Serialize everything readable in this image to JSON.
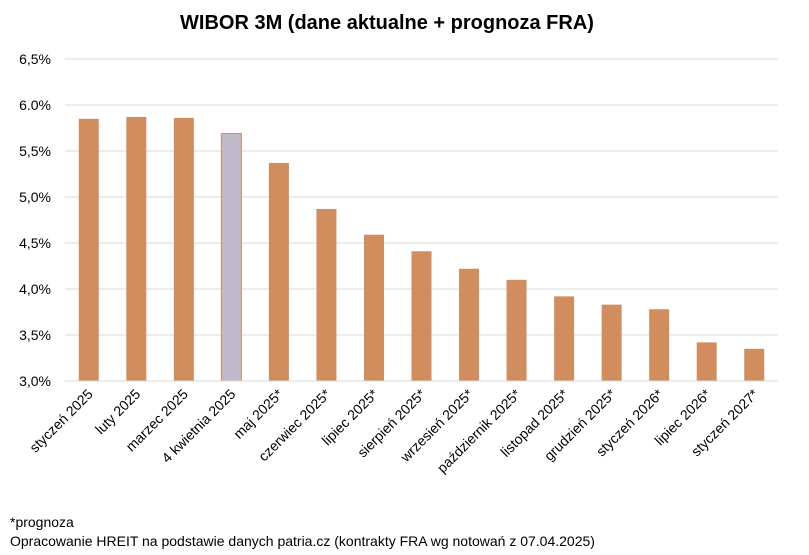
{
  "chart_data": {
    "type": "bar",
    "title": "WIBOR 3M (dane aktualne + prognoza FRA)",
    "xlabel": "",
    "ylabel": "",
    "ylim": [
      3.0,
      6.5
    ],
    "yticks": [
      "3,0%",
      "3,5%",
      "4,0%",
      "4,5%",
      "5,0%",
      "5,5%",
      "6.0%",
      "6,5%"
    ],
    "categories": [
      "styczeń 2025",
      "luty 2025",
      "marzec 2025",
      "4 kwietnia 2025",
      "maj 2025*",
      "czerwiec 2025*",
      "lipiec 2025*",
      "sierpień 2025*",
      "wrzesień 2025*",
      "październik 2025*",
      "listopad 2025*",
      "grudzień 2025*",
      "styczeń 2026*",
      "lipiec 2026*",
      "styczeń 2027*"
    ],
    "values": [
      5.85,
      5.87,
      5.86,
      5.69,
      5.37,
      4.87,
      4.59,
      4.41,
      4.22,
      4.1,
      3.92,
      3.83,
      3.78,
      3.42,
      3.35
    ],
    "bar_color": "#D18D5E",
    "highlight_color": "#BFB9C9",
    "highlight_index": 3,
    "grid": true,
    "legend": "none"
  },
  "notes": {
    "footnote": "*prognoza",
    "source": "Opracowanie HREIT na podstawie danych patria.cz (kontrakty FRA wg notowań z 07.04.2025)"
  }
}
